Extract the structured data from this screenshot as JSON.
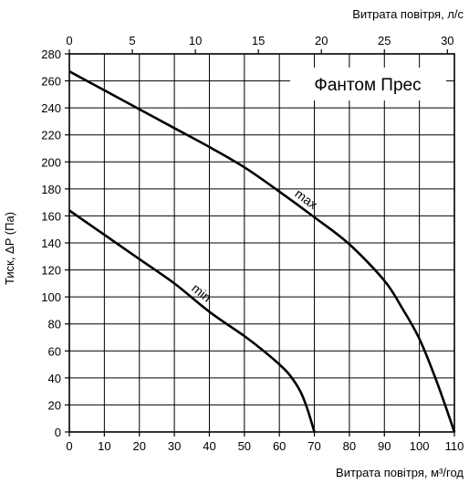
{
  "chart_data": {
    "type": "line",
    "title": "Фантом Прес",
    "xlabel": "Витрата повітря, м³/год",
    "x2label": "Витрата повітря, л/с",
    "ylabel": "Тиск, ΔP (Па)",
    "xlim": [
      0,
      110
    ],
    "x2lim": [
      0,
      30.556
    ],
    "ylim": [
      0,
      280
    ],
    "x_ticks": [
      "0",
      "10",
      "20",
      "30",
      "40",
      "50",
      "60",
      "70",
      "80",
      "90",
      "100",
      "110"
    ],
    "x_tick_values": [
      0,
      10,
      20,
      30,
      40,
      50,
      60,
      70,
      80,
      90,
      100,
      110
    ],
    "x2_ticks": [
      "0",
      "5",
      "10",
      "15",
      "20",
      "25",
      "30"
    ],
    "x2_tick_values": [
      0,
      5,
      10,
      15,
      20,
      25,
      30
    ],
    "y_ticks": [
      "0",
      "20",
      "40",
      "60",
      "80",
      "100",
      "120",
      "140",
      "160",
      "180",
      "200",
      "220",
      "240",
      "260",
      "280"
    ],
    "y_tick_values": [
      0,
      20,
      40,
      60,
      80,
      100,
      120,
      140,
      160,
      180,
      200,
      220,
      240,
      260,
      280
    ],
    "grid": true,
    "series": [
      {
        "name": "max",
        "x": [
          0,
          10,
          20,
          30,
          40,
          50,
          60,
          70,
          80,
          90,
          95,
          100,
          105,
          110
        ],
        "y": [
          267,
          253,
          239,
          225,
          211,
          196,
          178,
          159,
          139,
          112,
          92,
          69,
          37,
          0
        ]
      },
      {
        "name": "min",
        "x": [
          0,
          10,
          20,
          30,
          40,
          50,
          55,
          60,
          63,
          66,
          68,
          70
        ],
        "y": [
          164,
          146,
          128,
          110,
          89,
          71,
          61,
          50,
          42,
          30,
          17,
          0
        ]
      }
    ],
    "colors": {
      "line": "#000000",
      "grid": "#000000",
      "background": "#ffffff"
    }
  }
}
